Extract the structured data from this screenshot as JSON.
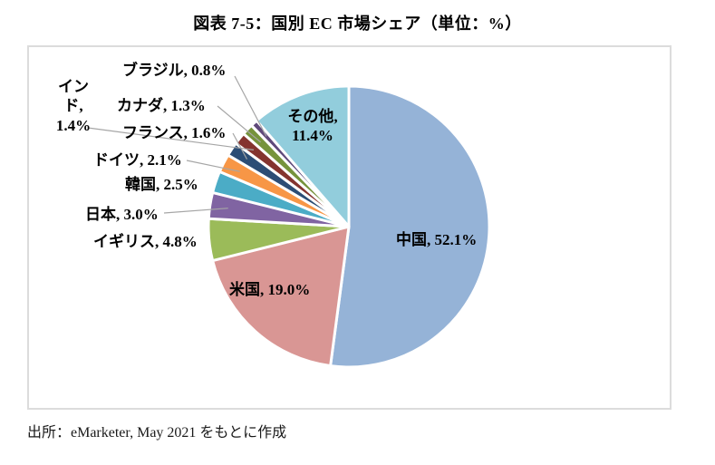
{
  "title": "図表 7-5：国別 EC 市場シェア（単位：%）",
  "source": "出所：eMarketer, May 2021 をもとに作成",
  "chart_data": {
    "type": "pie",
    "title": "図表 7-5：国別 EC 市場シェア（単位：%）",
    "unit": "%",
    "start_angle_deg": 0,
    "direction": "clockwise",
    "legend": "none",
    "slice_border_color": "#ffffff",
    "leader_line_color": "#a6a6a6",
    "slices": [
      {
        "key": "china",
        "name": "中国",
        "value": 52.1,
        "label": "中国, 52.1%",
        "color": "#95B3D7"
      },
      {
        "key": "us",
        "name": "米国",
        "value": 19.0,
        "label": "米国, 19.0%",
        "color": "#D99694"
      },
      {
        "key": "uk",
        "name": "イギリス",
        "value": 4.8,
        "label": "イギリス, 4.8%",
        "color": "#9BBB59"
      },
      {
        "key": "japan",
        "name": "日本",
        "value": 3.0,
        "label": "日本, 3.0%",
        "color": "#8064A2"
      },
      {
        "key": "korea",
        "name": "韓国",
        "value": 2.5,
        "label": "韓国, 2.5%",
        "color": "#4BACC6"
      },
      {
        "key": "germany",
        "name": "ドイツ",
        "value": 2.1,
        "label": "ドイツ, 2.1%",
        "color": "#F79646"
      },
      {
        "key": "france",
        "name": "フランス",
        "value": 1.6,
        "label": "フランス, 1.6%",
        "color": "#2C4D75"
      },
      {
        "key": "india",
        "name": "インド",
        "value": 1.4,
        "label": "イン\nド,\n1.4%",
        "color": "#84342F"
      },
      {
        "key": "canada",
        "name": "カナダ",
        "value": 1.3,
        "label": "カナダ, 1.3%",
        "color": "#76933C"
      },
      {
        "key": "brazil",
        "name": "ブラジル",
        "value": 0.8,
        "label": "ブラジル, 0.8%",
        "color": "#5F497A"
      },
      {
        "key": "other",
        "name": "その他",
        "value": 11.4,
        "label": "その他,\n11.4%",
        "color": "#92CDDC"
      }
    ]
  }
}
